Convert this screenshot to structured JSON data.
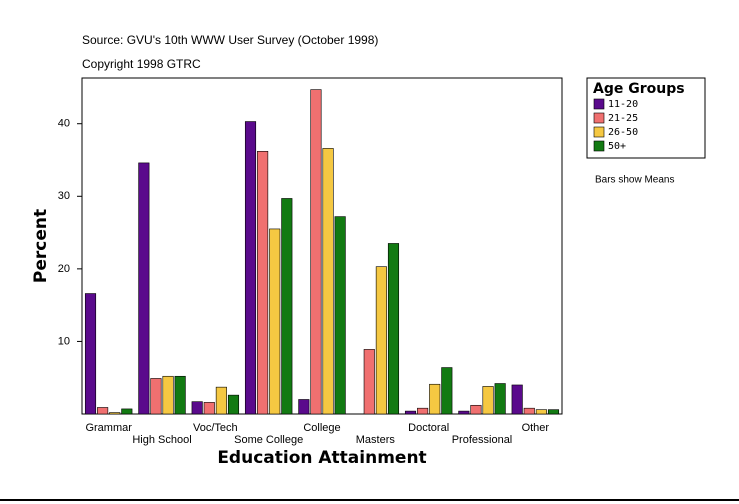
{
  "chart_data": {
    "type": "bar",
    "source": "Source: GVU's 10th WWW User Survey (October 1998)",
    "copyright": "Copyright 1998 GTRC",
    "ylabel": "Percent",
    "xlabel": "Education Attainment",
    "legend_title": "Age Groups",
    "note": "Bars show Means",
    "categories": [
      "Grammar",
      "High School",
      "Voc/Tech",
      "Some College",
      "College",
      "Masters",
      "Doctoral",
      "Professional",
      "Other"
    ],
    "series": [
      {
        "name": "11-20",
        "color": "#5a0a8c",
        "values": [
          16.6,
          34.6,
          1.7,
          40.3,
          2.0,
          0,
          0.4,
          0.4,
          4.0
        ]
      },
      {
        "name": "21-25",
        "color": "#f07070",
        "values": [
          0.9,
          4.9,
          1.6,
          36.2,
          44.7,
          8.9,
          0.8,
          1.2,
          0.8
        ]
      },
      {
        "name": "26-50",
        "color": "#f5c842",
        "values": [
          0.2,
          5.2,
          3.7,
          25.5,
          36.6,
          20.3,
          4.1,
          3.8,
          0.6
        ]
      },
      {
        "name": "50+",
        "color": "#127a12",
        "values": [
          0.7,
          5.2,
          2.6,
          29.7,
          27.2,
          23.5,
          6.4,
          4.2,
          0.6
        ]
      }
    ],
    "ylim": [
      0,
      46.3
    ],
    "yticks": [
      10,
      20,
      30,
      40
    ],
    "grid": false,
    "legend": "right"
  }
}
